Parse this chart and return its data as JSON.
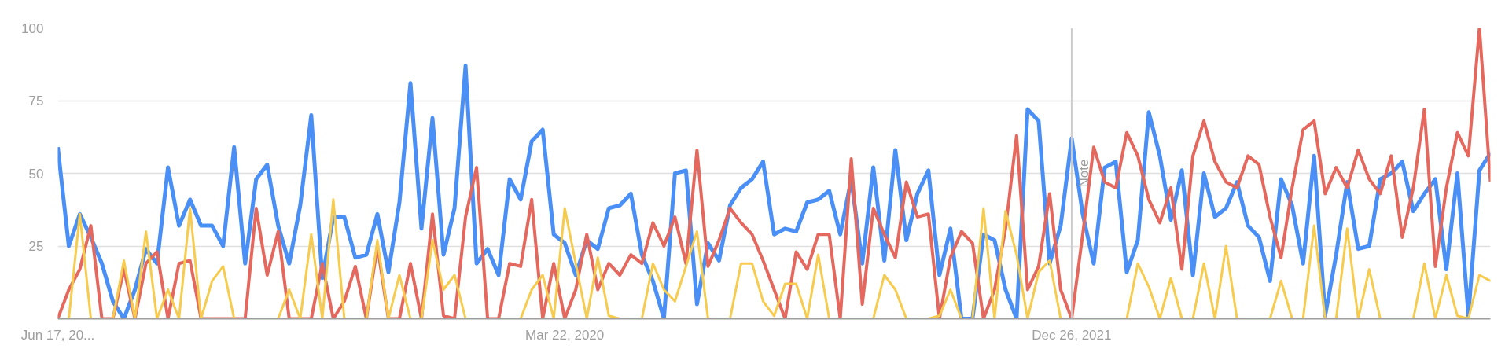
{
  "chart_data": {
    "type": "line",
    "x": [
      "2018-06-17",
      "2018-07-01",
      "2018-07-15",
      "2018-07-29",
      "2018-08-12",
      "2018-08-26",
      "2018-09-09",
      "2018-09-23",
      "2018-10-07",
      "2018-10-21",
      "2018-11-04",
      "2018-11-18",
      "2018-12-02",
      "2018-12-16",
      "2018-12-30",
      "2019-01-13",
      "2019-01-27",
      "2019-02-10",
      "2019-02-24",
      "2019-03-10",
      "2019-03-24",
      "2019-04-07",
      "2019-04-21",
      "2019-05-05",
      "2019-05-19",
      "2019-06-02",
      "2019-06-16",
      "2019-06-30",
      "2019-07-14",
      "2019-07-28",
      "2019-08-11",
      "2019-08-25",
      "2019-09-08",
      "2019-09-22",
      "2019-10-06",
      "2019-10-20",
      "2019-11-03",
      "2019-11-17",
      "2019-12-01",
      "2019-12-15",
      "2019-12-29",
      "2020-01-12",
      "2020-01-26",
      "2020-02-09",
      "2020-02-23",
      "2020-03-08",
      "2020-03-22",
      "2020-04-05",
      "2020-04-19",
      "2020-05-03",
      "2020-05-17",
      "2020-05-31",
      "2020-06-14",
      "2020-06-28",
      "2020-07-12",
      "2020-07-26",
      "2020-08-09",
      "2020-08-23",
      "2020-09-06",
      "2020-09-20",
      "2020-10-04",
      "2020-10-18",
      "2020-11-01",
      "2020-11-15",
      "2020-11-29",
      "2020-12-13",
      "2020-12-27",
      "2021-01-10",
      "2021-01-24",
      "2021-02-07",
      "2021-02-21",
      "2021-03-07",
      "2021-03-21",
      "2021-04-04",
      "2021-04-18",
      "2021-05-02",
      "2021-05-16",
      "2021-05-30",
      "2021-06-13",
      "2021-06-27",
      "2021-07-11",
      "2021-07-25",
      "2021-08-08",
      "2021-08-22",
      "2021-09-05",
      "2021-09-19",
      "2021-10-03",
      "2021-10-17",
      "2021-10-31",
      "2021-11-14",
      "2021-11-28",
      "2021-12-12",
      "2021-12-26",
      "2022-01-09",
      "2022-01-23",
      "2022-02-06",
      "2022-02-20",
      "2022-03-06",
      "2022-03-20",
      "2022-04-03",
      "2022-04-17",
      "2022-05-01",
      "2022-05-15",
      "2022-05-29",
      "2022-06-12",
      "2022-06-26",
      "2022-07-10",
      "2022-07-24",
      "2022-08-07",
      "2022-08-21",
      "2022-09-04",
      "2022-09-18",
      "2022-10-02",
      "2022-10-16",
      "2022-10-30",
      "2022-11-13",
      "2022-11-27",
      "2022-12-11",
      "2022-12-25",
      "2023-01-08",
      "2023-01-22",
      "2023-02-05",
      "2023-02-19",
      "2023-03-05",
      "2023-03-19",
      "2023-04-02",
      "2023-04-16",
      "2023-04-30",
      "2023-05-14",
      "2023-05-28",
      "2023-06-11"
    ],
    "series": [
      {
        "color": "#4a8ff5",
        "values": [
          59,
          25,
          36,
          28,
          19,
          6,
          0,
          10,
          24,
          19,
          52,
          32,
          41,
          32,
          32,
          25,
          59,
          19,
          48,
          53,
          32,
          19,
          39,
          70,
          14,
          35,
          35,
          21,
          22,
          36,
          16,
          40,
          81,
          31,
          69,
          22,
          38,
          87,
          19,
          24,
          15,
          48,
          41,
          61,
          65,
          29,
          26,
          15,
          27,
          24,
          38,
          39,
          43,
          22,
          13,
          0,
          50,
          51,
          5,
          26,
          20,
          39,
          45,
          48,
          54,
          29,
          31,
          30,
          40,
          41,
          44,
          29,
          48,
          19,
          52,
          20,
          58,
          27,
          43,
          51,
          15,
          31,
          0,
          0,
          29,
          27,
          10,
          0,
          72,
          68,
          19,
          32,
          62,
          36,
          19,
          52,
          54,
          16,
          27,
          71,
          56,
          34,
          51,
          15,
          50,
          35,
          38,
          47,
          32,
          28,
          13,
          48,
          39,
          19,
          56,
          1,
          22,
          47,
          24,
          25,
          48,
          50,
          54,
          37,
          43,
          48,
          17,
          50,
          1,
          51,
          57
        ]
      },
      {
        "color": "#e4685d",
        "values": [
          0,
          10,
          17,
          32,
          0,
          0,
          17,
          0,
          19,
          23,
          0,
          19,
          20,
          0,
          0,
          0,
          0,
          0,
          38,
          15,
          30,
          0,
          0,
          0,
          19,
          0,
          6,
          18,
          0,
          25,
          0,
          0,
          19,
          0,
          36,
          1,
          0,
          35,
          52,
          0,
          0,
          19,
          18,
          41,
          0,
          19,
          0,
          10,
          29,
          10,
          19,
          15,
          22,
          19,
          33,
          25,
          35,
          19,
          58,
          18,
          27,
          38,
          33,
          29,
          20,
          10,
          0,
          23,
          17,
          29,
          29,
          0,
          55,
          5,
          38,
          29,
          21,
          47,
          35,
          36,
          0,
          21,
          30,
          26,
          0,
          10,
          31,
          63,
          10,
          18,
          43,
          10,
          0,
          29,
          59,
          47,
          45,
          64,
          56,
          41,
          33,
          45,
          17,
          56,
          68,
          54,
          47,
          45,
          56,
          53,
          35,
          21,
          45,
          65,
          68,
          43,
          52,
          45,
          58,
          48,
          43,
          56,
          28,
          45,
          72,
          18,
          45,
          64,
          56,
          100,
          47
        ]
      },
      {
        "color": "#f7cb4d",
        "values": [
          0,
          0,
          36,
          0,
          0,
          0,
          20,
          0,
          30,
          0,
          10,
          0,
          38,
          0,
          13,
          18,
          0,
          0,
          0,
          0,
          0,
          10,
          0,
          29,
          0,
          41,
          0,
          0,
          0,
          27,
          0,
          15,
          0,
          0,
          27,
          10,
          15,
          0,
          0,
          0,
          0,
          0,
          0,
          10,
          15,
          0,
          38,
          19,
          0,
          21,
          1,
          0,
          0,
          0,
          19,
          10,
          6,
          18,
          30,
          0,
          0,
          0,
          19,
          19,
          6,
          1,
          12,
          12,
          0,
          22,
          0,
          0,
          0,
          0,
          0,
          15,
          10,
          0,
          0,
          0,
          1,
          10,
          0,
          0,
          38,
          0,
          37,
          22,
          0,
          16,
          20,
          0,
          0,
          0,
          0,
          0,
          0,
          0,
          19,
          11,
          0,
          14,
          0,
          0,
          19,
          0,
          25,
          0,
          0,
          0,
          0,
          13,
          0,
          0,
          32,
          0,
          0,
          31,
          0,
          17,
          0,
          0,
          0,
          0,
          19,
          0,
          15,
          1,
          0,
          15,
          13
        ]
      }
    ],
    "xlim": [
      "2018-06-17",
      "2023-06-11"
    ],
    "xticks": [
      {
        "value": "2018-06-17",
        "label": "Jun 17, 20..."
      },
      {
        "value": "2020-03-22",
        "label": "Mar 22, 2020"
      },
      {
        "value": "2021-12-26",
        "label": "Dec 26, 2021"
      }
    ],
    "ylim": [
      0,
      100
    ],
    "yticks": [
      25,
      50,
      75,
      100
    ],
    "grid": "y",
    "ref_lines": [
      {
        "axis": "x",
        "value": "2021-12-26",
        "label": "Note",
        "color": "#cccccc"
      }
    ]
  }
}
